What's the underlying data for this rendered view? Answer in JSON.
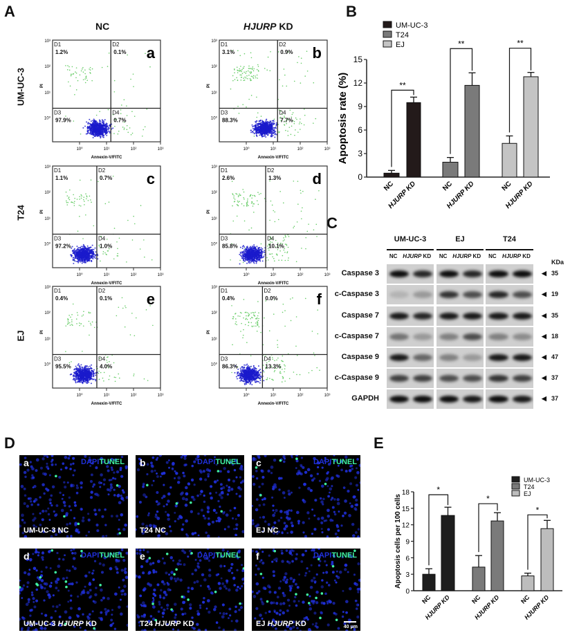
{
  "panel_labels": {
    "A": "A",
    "B": "B",
    "C": "C",
    "D": "D",
    "E": "E"
  },
  "flow": {
    "col_headers": [
      "NC",
      "HJURP",
      "KD"
    ],
    "row_labels": [
      "UM-UC-3",
      "T24",
      "EJ"
    ],
    "x_axis_label": "Annexin-V/FITC",
    "y_axis_label": "PI",
    "x_ticks": [
      "10⁰",
      "10¹",
      "10²",
      "10³"
    ],
    "y_ticks": [
      "10³",
      "10²",
      "10¹",
      "10⁰"
    ],
    "panels": [
      {
        "letter": "a",
        "D1": "1.2%",
        "D2": "0.1%",
        "D3": "97.9%",
        "D4": "0.7%"
      },
      {
        "letter": "b",
        "D1": "3.1%",
        "D2": "0.9%",
        "D3": "88.3%",
        "D4": "7.7%"
      },
      {
        "letter": "c",
        "D1": "1.1%",
        "D2": "0.7%",
        "D3": "97.2%",
        "D4": "1.0%"
      },
      {
        "letter": "d",
        "D1": "2.6%",
        "D2": "1.3%",
        "D3": "85.8%",
        "D4": "10.1%"
      },
      {
        "letter": "e",
        "D1": "0.4%",
        "D2": "0.1%",
        "D3": "95.5%",
        "D4": "4.0%"
      },
      {
        "letter": "f",
        "D1": "0.4%",
        "D2": "0.0%",
        "D3": "86.3%",
        "D4": "13.3%"
      }
    ],
    "colors": {
      "dense": "#1a1acc",
      "sparse": "#66cc66"
    }
  },
  "blot": {
    "groups": [
      "UM-UC-3",
      "EJ",
      "T24"
    ],
    "lanes": [
      "NC",
      "HJURP",
      "KD"
    ],
    "unit": "KDa",
    "rows": [
      {
        "label": "Caspase 3",
        "kda": "35"
      },
      {
        "label": "c-Caspase 3",
        "kda": "19"
      },
      {
        "label": "Caspase 7",
        "kda": "35"
      },
      {
        "label": "c-Caspase 7",
        "kda": "18"
      },
      {
        "label": "Caspase 9",
        "kda": "47"
      },
      {
        "label": "c-Caspase 9",
        "kda": "37"
      },
      {
        "label": "GAPDH",
        "kda": "37"
      }
    ]
  },
  "tunel": {
    "stain1": "DAPI",
    "stain2": "TUNEL",
    "scale_bar": "40 μm",
    "panels": [
      {
        "letter": "a",
        "cell": "UM-UC-3",
        "gene": "",
        "cond": "NC"
      },
      {
        "letter": "b",
        "cell": "T24",
        "gene": "",
        "cond": "NC"
      },
      {
        "letter": "c",
        "cell": "EJ",
        "gene": "",
        "cond": "NC"
      },
      {
        "letter": "d",
        "cell": "UM-UC-3",
        "gene": "HJURP",
        "cond": "KD"
      },
      {
        "letter": "e",
        "cell": "T24",
        "gene": "HJURP",
        "cond": "KD"
      },
      {
        "letter": "f",
        "cell": "EJ",
        "gene": "HJURP",
        "cond": "KD"
      }
    ],
    "colors": {
      "dapi": "#1f2fd8",
      "tunel": "#40f0a0"
    }
  },
  "chart_data": [
    {
      "type": "bar",
      "panel": "B",
      "ylabel": "Apoptosis rate (%)",
      "ylim": [
        0,
        15
      ],
      "yticks": [
        0,
        3,
        6,
        9,
        12,
        15
      ],
      "categories": [
        "NC",
        "HJURP KD"
      ],
      "legend": "top-left",
      "significance": "**",
      "series": [
        {
          "name": "UM-UC-3",
          "color": "#231a1a",
          "values": [
            0.5,
            9.5
          ],
          "errors": [
            0.35,
            0.7
          ]
        },
        {
          "name": "T24",
          "color": "#7a7a7a",
          "values": [
            1.9,
            11.7
          ],
          "errors": [
            0.6,
            1.6
          ]
        },
        {
          "name": "EJ",
          "color": "#c4c4c4",
          "values": [
            4.3,
            12.8
          ],
          "errors": [
            0.95,
            0.55
          ]
        }
      ]
    },
    {
      "type": "bar",
      "panel": "E",
      "ylabel": "Apoptosis cells per 100 cells",
      "ylim": [
        0,
        18
      ],
      "yticks": [
        0,
        3,
        6,
        9,
        12,
        15,
        18
      ],
      "categories": [
        "NC",
        "HJURP KD"
      ],
      "legend": "top-right",
      "significance": "*",
      "series": [
        {
          "name": "UM-UC-3",
          "color": "#1e1e1e",
          "values": [
            3.0,
            13.7
          ],
          "errors": [
            1.0,
            1.5
          ]
        },
        {
          "name": "T24",
          "color": "#7a7a7a",
          "values": [
            4.3,
            12.7
          ],
          "errors": [
            2.1,
            1.5
          ]
        },
        {
          "name": "EJ",
          "color": "#bdbdbd",
          "values": [
            2.7,
            11.3
          ],
          "errors": [
            0.5,
            1.5
          ]
        }
      ]
    }
  ]
}
